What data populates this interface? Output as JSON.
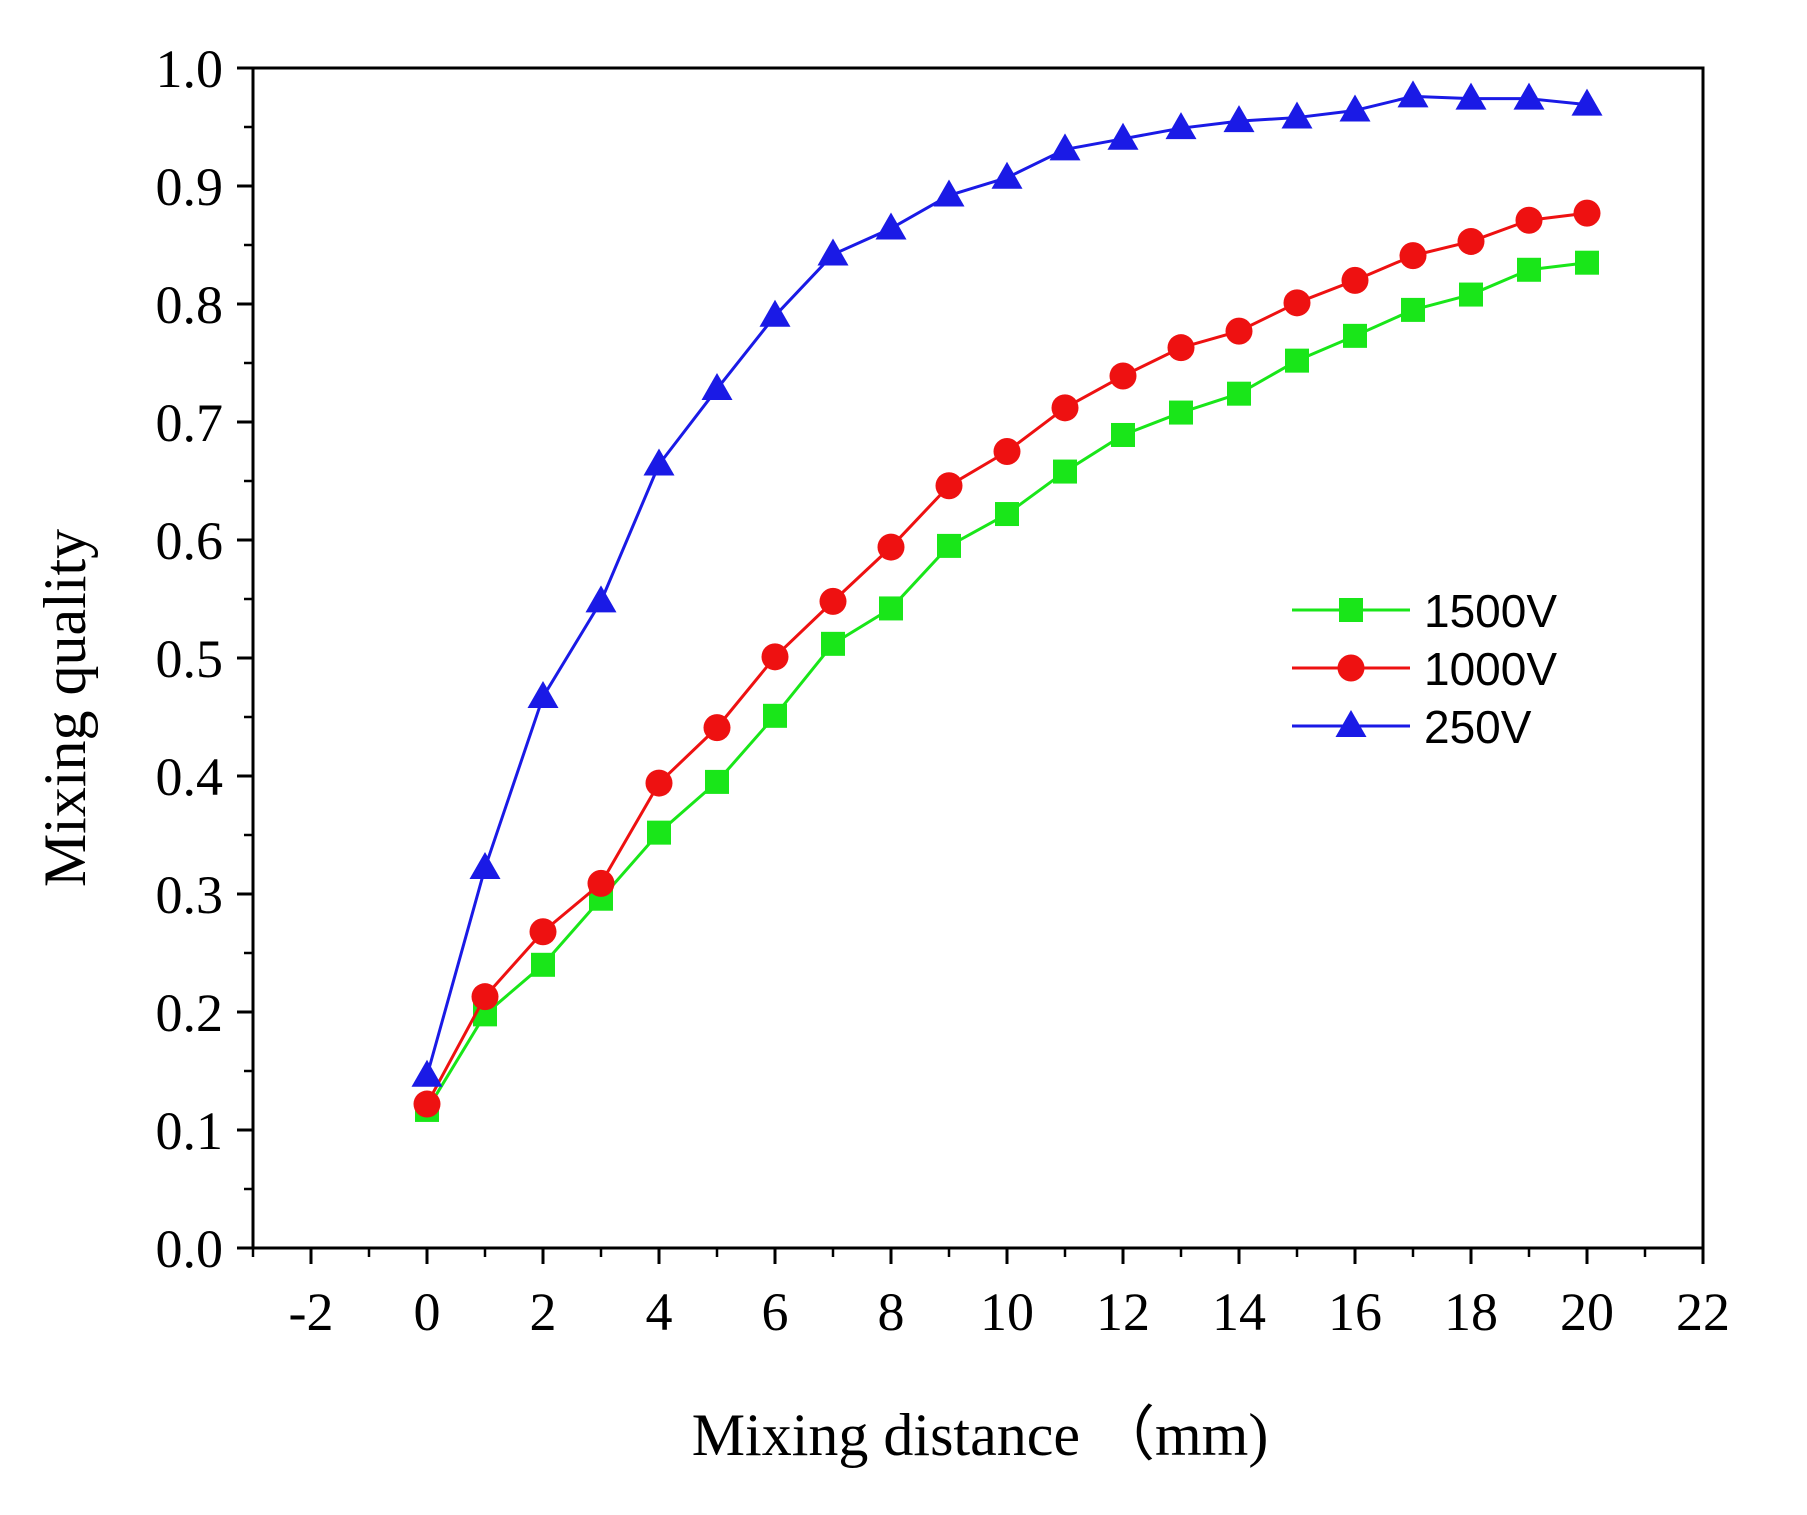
{
  "chart_data": {
    "type": "line",
    "title": "",
    "xlabel": "Mixing distance （mm)",
    "ylabel": "Mixing quality",
    "xlim": [
      -3,
      22
    ],
    "ylim": [
      0.0,
      1.0
    ],
    "xticks": [
      -2,
      0,
      2,
      4,
      6,
      8,
      10,
      12,
      14,
      16,
      18,
      20,
      22
    ],
    "xtick_labels": [
      "-2",
      "0",
      "2",
      "4",
      "6",
      "8",
      "10",
      "12",
      "14",
      "16",
      "18",
      "20",
      "22"
    ],
    "yticks": [
      0.0,
      0.1,
      0.2,
      0.3,
      0.4,
      0.5,
      0.6,
      0.7,
      0.8,
      0.9,
      1.0
    ],
    "ytick_labels": [
      "0.0",
      "0.1",
      "0.2",
      "0.3",
      "0.4",
      "0.5",
      "0.6",
      "0.7",
      "0.8",
      "0.9",
      "1.0"
    ],
    "grid": false,
    "legend_position": "center-right",
    "x": [
      0,
      1,
      2,
      3,
      4,
      5,
      6,
      7,
      8,
      9,
      10,
      11,
      12,
      13,
      14,
      15,
      16,
      17,
      18,
      19,
      20
    ],
    "series": [
      {
        "name": "1500V",
        "color": "#19e619",
        "marker": "square",
        "values": [
          0.117,
          0.198,
          0.24,
          0.296,
          0.352,
          0.395,
          0.451,
          0.512,
          0.542,
          0.595,
          0.622,
          0.658,
          0.689,
          0.708,
          0.724,
          0.752,
          0.773,
          0.795,
          0.808,
          0.829,
          0.835
        ]
      },
      {
        "name": "1000V",
        "color": "#ee1111",
        "marker": "circle",
        "values": [
          0.122,
          0.213,
          0.268,
          0.309,
          0.394,
          0.441,
          0.501,
          0.548,
          0.594,
          0.646,
          0.675,
          0.712,
          0.739,
          0.763,
          0.777,
          0.801,
          0.82,
          0.841,
          0.853,
          0.871,
          0.877
        ]
      },
      {
        "name": "250V",
        "color": "#1a1ae6",
        "marker": "triangle",
        "values": [
          0.146,
          0.322,
          0.467,
          0.548,
          0.664,
          0.728,
          0.79,
          0.842,
          0.864,
          0.892,
          0.907,
          0.931,
          0.94,
          0.949,
          0.955,
          0.958,
          0.964,
          0.976,
          0.974,
          0.974,
          0.969
        ]
      }
    ]
  }
}
